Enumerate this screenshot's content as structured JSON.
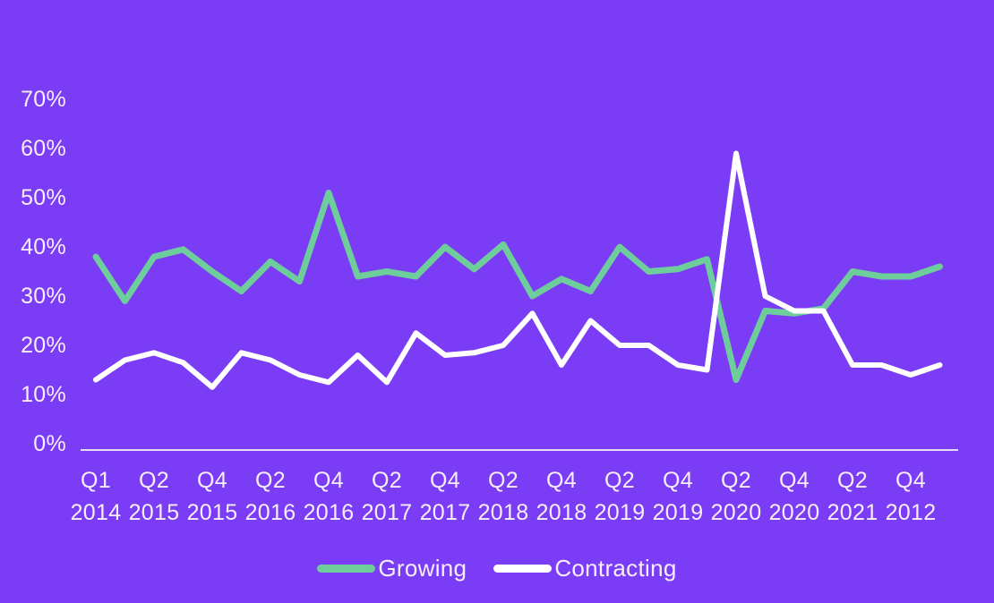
{
  "colors": {
    "background": "#7B3CF5",
    "axis_line": "#E6DCF0",
    "label_text": "#F7EEFA",
    "growing_line": "#6DCE9B",
    "contracting_line": "#FFFFFF"
  },
  "chart_data": {
    "type": "line",
    "title": "",
    "xlabel": "",
    "ylabel": "",
    "ylim": [
      0,
      75
    ],
    "grid": false,
    "legend_position": "bottom",
    "y_tick_labels": [
      "70%",
      "60%",
      "50%",
      "40%",
      "30%",
      "20%",
      "10%",
      "0%"
    ],
    "y_tick_values": [
      70,
      60,
      50,
      40,
      30,
      20,
      10,
      0
    ],
    "x_tick_labels": [
      {
        "q": "Q1",
        "year": "2014"
      },
      {
        "q": "Q2",
        "year": "2015"
      },
      {
        "q": "Q4",
        "year": "2015"
      },
      {
        "q": "Q2",
        "year": "2016"
      },
      {
        "q": "Q4",
        "year": "2016"
      },
      {
        "q": "Q2",
        "year": "2017"
      },
      {
        "q": "Q4",
        "year": "2017"
      },
      {
        "q": "Q2",
        "year": "2018"
      },
      {
        "q": "Q4",
        "year": "2018"
      },
      {
        "q": "Q2",
        "year": "2019"
      },
      {
        "q": "Q4",
        "year": "2019"
      },
      {
        "q": "Q2",
        "year": "2020"
      },
      {
        "q": "Q4",
        "year": "2020"
      },
      {
        "q": "Q2",
        "year": "2021"
      },
      {
        "q": "Q4",
        "year": "2012"
      }
    ],
    "series": [
      {
        "name": "Growing",
        "color": "#6DCE9B",
        "values": [
          38,
          29,
          38,
          39.5,
          35,
          31,
          37,
          33,
          51,
          34,
          35,
          34,
          40,
          35.5,
          40.5,
          30,
          33.5,
          31,
          40,
          35,
          35.5,
          37.5,
          13,
          27,
          26.5,
          27.5,
          35,
          34,
          34,
          36
        ]
      },
      {
        "name": "Contracting",
        "color": "#FFFFFF",
        "values": [
          13,
          17,
          18.5,
          16.5,
          11.5,
          18.5,
          17,
          14,
          12.5,
          18,
          12.5,
          22.5,
          18,
          18.5,
          20,
          26.5,
          16,
          25,
          20,
          20,
          16,
          15,
          59,
          30,
          27,
          27,
          16,
          16,
          14,
          16
        ]
      }
    ]
  }
}
